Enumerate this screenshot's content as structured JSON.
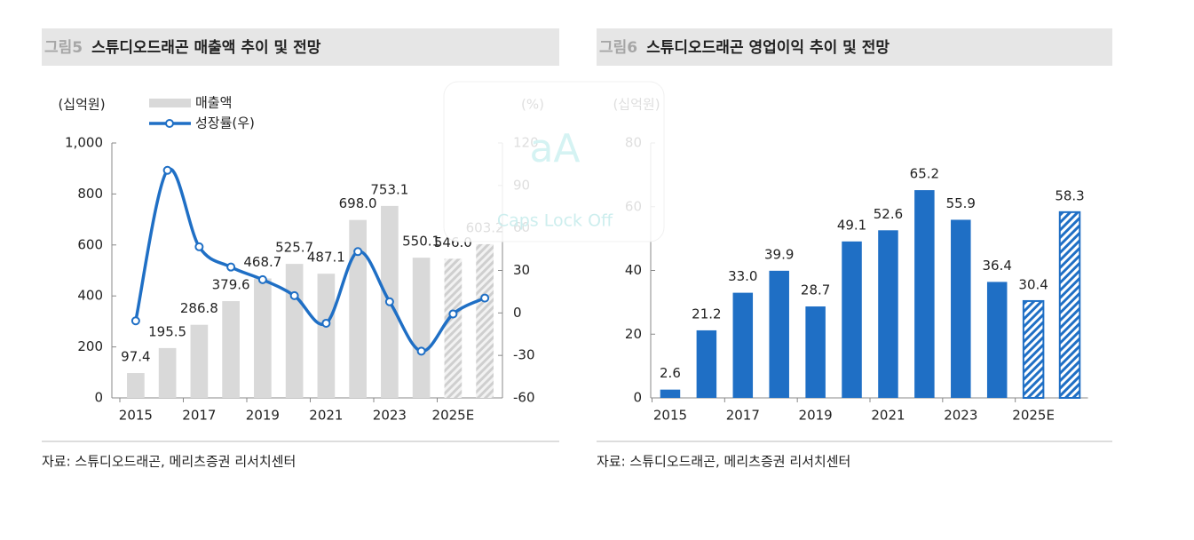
{
  "chart_data": [
    {
      "type": "combo",
      "figure_label": "그림5",
      "title": "스튜디오드래곤 매출액 추이 및 전망",
      "y_label": "(십억원)",
      "y2_label": "(%)",
      "categories": [
        "2015",
        null,
        "2017",
        null,
        "2019",
        null,
        "2021",
        null,
        "2023",
        null,
        "2025E",
        null
      ],
      "series": [
        {
          "name": "매출액",
          "type": "bar",
          "color": "#d9d9d9",
          "values": [
            97.4,
            195.5,
            286.8,
            379.6,
            468.7,
            525.7,
            487.1,
            698.0,
            753.1,
            550.1,
            546.0,
            603.2
          ],
          "value_labels": [
            "97.4",
            "195.5",
            "286.8",
            "379.6",
            "468.7",
            "525.7",
            "487.1",
            "698.0",
            "753.1",
            "550.1",
            "546.0",
            "603.2"
          ],
          "bar_styles": [
            "solid",
            "solid",
            "solid",
            "solid",
            "solid",
            "solid",
            "solid",
            "solid",
            "solid",
            "solid",
            "hatched",
            "hatched"
          ]
        },
        {
          "name": "성장률(우)",
          "type": "line",
          "axis": "y2",
          "color": "#1f6fc5",
          "values": [
            -5.6,
            100.7,
            46.7,
            32.4,
            23.5,
            12.2,
            -7.3,
            43.3,
            7.9,
            -27.0,
            -0.7,
            10.5
          ]
        }
      ],
      "ylim": [
        0,
        1000
      ],
      "yticks": [
        0,
        200,
        400,
        600,
        800,
        {
          "value": 1000,
          "label": "1,000"
        }
      ],
      "y2lim": [
        -60,
        120
      ],
      "y2ticks": [
        -60,
        -30,
        0,
        30,
        60,
        90,
        120
      ],
      "legend": "top-left",
      "source": "자료: 스튜디오드래곤, 메리츠증권 리서치센터"
    },
    {
      "type": "bar",
      "figure_label": "그림6",
      "title": "스튜디오드래곤 영업이익 추이 및 전망",
      "y_label": "(십억원)",
      "categories": [
        "2015",
        null,
        "2017",
        null,
        "2019",
        null,
        "2021",
        null,
        "2023",
        null,
        "2025E",
        null
      ],
      "series": [
        {
          "name": null,
          "type": "bar",
          "color": "#1f6fc5",
          "values": [
            2.6,
            21.2,
            33.0,
            39.9,
            28.7,
            49.1,
            52.6,
            65.2,
            55.9,
            36.4,
            30.4,
            58.3
          ],
          "value_labels": [
            "2.6",
            "21.2",
            "33.0",
            "39.9",
            "28.7",
            "49.1",
            "52.6",
            "65.2",
            "55.9",
            "36.4",
            "30.4",
            "58.3"
          ],
          "bar_styles": [
            "solid",
            "solid",
            "solid",
            "solid",
            "solid",
            "solid",
            "solid",
            "solid",
            "solid",
            "solid",
            "hatched",
            "hatched"
          ]
        }
      ],
      "ylim": [
        0,
        80
      ],
      "yticks": [
        0,
        20,
        40,
        60,
        80
      ],
      "source": "자료: 스튜디오드래곤, 메리츠증권 리서치센터"
    }
  ],
  "overlay": {
    "icon": "aA",
    "text": "Caps Lock Off"
  }
}
